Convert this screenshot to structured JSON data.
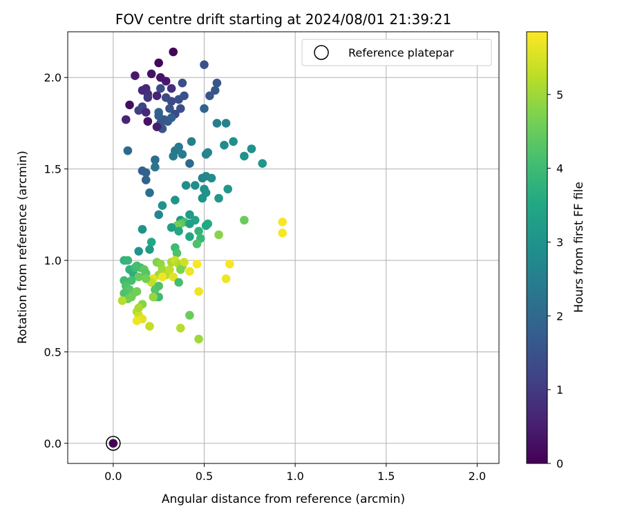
{
  "chart_data": {
    "type": "scatter",
    "title": "FOV centre drift starting at 2024/08/01 21:39:21",
    "xlabel": "Angular distance from reference (arcmin)",
    "ylabel": "Rotation from reference (arcmin)",
    "xlim": [
      -0.25,
      2.12
    ],
    "ylim": [
      -0.11,
      2.25
    ],
    "xticks": [
      0.0,
      0.5,
      1.0,
      1.5,
      2.0
    ],
    "xtick_labels": [
      "0.0",
      "0.5",
      "1.0",
      "1.5",
      "2.0"
    ],
    "yticks": [
      0.0,
      0.5,
      1.0,
      1.5,
      2.0
    ],
    "ytick_labels": [
      "0.0",
      "0.5",
      "1.0",
      "1.5",
      "2.0"
    ],
    "grid": true,
    "legend": {
      "position": "top-right",
      "entries": [
        "Reference platepar"
      ]
    },
    "colorbar": {
      "label": "Hours from first FF file",
      "min": 0,
      "max": 5.85,
      "colormap": "viridis",
      "ticks": [
        0,
        1,
        2,
        3,
        4,
        5
      ],
      "tick_labels": [
        "0",
        "1",
        "2",
        "3",
        "4",
        "5"
      ]
    },
    "reference_point": {
      "x": 0.0,
      "y": 0.0
    },
    "points": [
      [
        0.33,
        2.14,
        0.05
      ],
      [
        0.25,
        2.08,
        0.05
      ],
      [
        0.12,
        2.01,
        0.4
      ],
      [
        0.21,
        2.02,
        0.3
      ],
      [
        0.26,
        2.0,
        0.35
      ],
      [
        0.29,
        1.98,
        0.4
      ],
      [
        0.5,
        2.07,
        1.5
      ],
      [
        0.57,
        1.97,
        1.6
      ],
      [
        0.56,
        1.93,
        1.6
      ],
      [
        0.53,
        1.9,
        1.6
      ],
      [
        0.38,
        1.97,
        1.4
      ],
      [
        0.32,
        1.94,
        0.8
      ],
      [
        0.26,
        1.94,
        1.4
      ],
      [
        0.18,
        1.94,
        0.7
      ],
      [
        0.16,
        1.93,
        0.7
      ],
      [
        0.19,
        1.91,
        0.8
      ],
      [
        0.24,
        1.9,
        0.6
      ],
      [
        0.19,
        1.89,
        0.9
      ],
      [
        0.09,
        1.85,
        0.2
      ],
      [
        0.14,
        1.82,
        1.1
      ],
      [
        0.16,
        1.84,
        1.2
      ],
      [
        0.18,
        1.81,
        0.7
      ],
      [
        0.29,
        1.89,
        1.3
      ],
      [
        0.32,
        1.87,
        1.3
      ],
      [
        0.36,
        1.88,
        1.4
      ],
      [
        0.39,
        1.9,
        1.5
      ],
      [
        0.37,
        1.83,
        1.4
      ],
      [
        0.34,
        1.8,
        1.3
      ],
      [
        0.31,
        1.83,
        1.5
      ],
      [
        0.25,
        1.81,
        1.9
      ],
      [
        0.25,
        1.79,
        1.8
      ],
      [
        0.28,
        1.77,
        1.7
      ],
      [
        0.3,
        1.76,
        1.7
      ],
      [
        0.32,
        1.78,
        1.8
      ],
      [
        0.26,
        1.75,
        1.6
      ],
      [
        0.27,
        1.72,
        1.6
      ],
      [
        0.24,
        1.73,
        0.5
      ],
      [
        0.19,
        1.76,
        0.3
      ],
      [
        0.07,
        1.77,
        0.6
      ],
      [
        0.5,
        1.83,
        1.9
      ],
      [
        0.57,
        1.75,
        2.5
      ],
      [
        0.62,
        1.75,
        2.6
      ],
      [
        0.08,
        1.6,
        2.0
      ],
      [
        0.23,
        1.55,
        2.1
      ],
      [
        0.34,
        1.6,
        2.3
      ],
      [
        0.36,
        1.62,
        2.4
      ],
      [
        0.33,
        1.57,
        2.4
      ],
      [
        0.38,
        1.58,
        2.4
      ],
      [
        0.43,
        1.65,
        2.5
      ],
      [
        0.51,
        1.58,
        2.6
      ],
      [
        0.52,
        1.59,
        2.7
      ],
      [
        0.61,
        1.63,
        2.8
      ],
      [
        0.66,
        1.65,
        2.9
      ],
      [
        0.72,
        1.57,
        3.0
      ],
      [
        0.76,
        1.61,
        3.0
      ],
      [
        0.82,
        1.53,
        3.1
      ],
      [
        0.16,
        1.49,
        1.8
      ],
      [
        0.18,
        1.48,
        1.9
      ],
      [
        0.23,
        1.51,
        2.3
      ],
      [
        0.18,
        1.44,
        1.9
      ],
      [
        0.42,
        1.53,
        2.0
      ],
      [
        0.49,
        1.45,
        2.6
      ],
      [
        0.51,
        1.46,
        2.7
      ],
      [
        0.54,
        1.45,
        2.8
      ],
      [
        0.45,
        1.41,
        2.9
      ],
      [
        0.4,
        1.41,
        2.9
      ],
      [
        0.5,
        1.39,
        2.9
      ],
      [
        0.51,
        1.37,
        3.0
      ],
      [
        0.49,
        1.34,
        3.0
      ],
      [
        0.58,
        1.34,
        3.1
      ],
      [
        0.63,
        1.39,
        3.1
      ],
      [
        0.2,
        1.37,
        2.1
      ],
      [
        0.34,
        1.33,
        3.0
      ],
      [
        0.27,
        1.3,
        3.0
      ],
      [
        0.25,
        1.25,
        2.7
      ],
      [
        0.37,
        1.22,
        3.1
      ],
      [
        0.42,
        1.25,
        3.2
      ],
      [
        0.45,
        1.22,
        3.4
      ],
      [
        0.52,
        1.2,
        3.6
      ],
      [
        0.51,
        1.19,
        3.5
      ],
      [
        0.39,
        1.21,
        4.1
      ],
      [
        0.37,
        1.2,
        4.4
      ],
      [
        0.35,
        1.19,
        4.6
      ],
      [
        0.32,
        1.18,
        3.3
      ],
      [
        0.42,
        1.2,
        3.3
      ],
      [
        0.36,
        1.16,
        3.5
      ],
      [
        0.42,
        1.13,
        3.5
      ],
      [
        0.47,
        1.16,
        3.8
      ],
      [
        0.48,
        1.12,
        3.9
      ],
      [
        0.46,
        1.09,
        4.2
      ],
      [
        0.16,
        1.17,
        3.0
      ],
      [
        0.21,
        1.1,
        3.5
      ],
      [
        0.2,
        1.06,
        3.2
      ],
      [
        0.14,
        1.05,
        3.0
      ],
      [
        0.34,
        1.07,
        4.0
      ],
      [
        0.35,
        1.04,
        4.2
      ],
      [
        0.58,
        1.14,
        4.8
      ],
      [
        0.72,
        1.22,
        4.5
      ],
      [
        0.93,
        1.21,
        5.8
      ],
      [
        0.93,
        1.15,
        5.8
      ],
      [
        0.64,
        0.98,
        5.8
      ],
      [
        0.62,
        0.9,
        5.7
      ],
      [
        0.06,
        1.0,
        3.8
      ],
      [
        0.08,
        1.0,
        3.9
      ],
      [
        0.09,
        0.95,
        3.8
      ],
      [
        0.11,
        0.93,
        3.7
      ],
      [
        0.12,
        0.96,
        4.0
      ],
      [
        0.13,
        0.97,
        4.1
      ],
      [
        0.15,
        0.96,
        4.1
      ],
      [
        0.17,
        0.95,
        4.4
      ],
      [
        0.18,
        0.93,
        4.3
      ],
      [
        0.14,
        0.91,
        4.5
      ],
      [
        0.1,
        0.89,
        4.1
      ],
      [
        0.06,
        0.89,
        4.0
      ],
      [
        0.07,
        0.86,
        4.2
      ],
      [
        0.09,
        0.84,
        4.3
      ],
      [
        0.11,
        0.82,
        4.4
      ],
      [
        0.13,
        0.83,
        4.6
      ],
      [
        0.06,
        0.82,
        4.2
      ],
      [
        0.08,
        0.79,
        4.5
      ],
      [
        0.1,
        0.8,
        4.6
      ],
      [
        0.05,
        0.78,
        5.2
      ],
      [
        0.16,
        0.76,
        4.8
      ],
      [
        0.13,
        0.72,
        5.2
      ],
      [
        0.14,
        0.7,
        5.4
      ],
      [
        0.16,
        0.68,
        5.6
      ],
      [
        0.13,
        0.67,
        5.7
      ],
      [
        0.14,
        0.74,
        5.1
      ],
      [
        0.2,
        0.64,
        5.3
      ],
      [
        0.24,
        0.99,
        4.7
      ],
      [
        0.26,
        0.98,
        4.9
      ],
      [
        0.27,
        0.95,
        5.0
      ],
      [
        0.25,
        0.92,
        5.0
      ],
      [
        0.29,
        0.92,
        5.2
      ],
      [
        0.31,
        0.95,
        5.3
      ],
      [
        0.32,
        0.99,
        5.1
      ],
      [
        0.34,
        1.0,
        5.4
      ],
      [
        0.36,
        0.98,
        5.2
      ],
      [
        0.38,
        0.97,
        4.9
      ],
      [
        0.39,
        0.99,
        5.4
      ],
      [
        0.37,
        0.95,
        4.7
      ],
      [
        0.33,
        0.91,
        5.6
      ],
      [
        0.27,
        0.91,
        5.7
      ],
      [
        0.22,
        0.9,
        5.6
      ],
      [
        0.21,
        0.88,
        5.3
      ],
      [
        0.23,
        0.84,
        4.3
      ],
      [
        0.25,
        0.86,
        4.2
      ],
      [
        0.23,
        0.8,
        4.3
      ],
      [
        0.25,
        0.8,
        4.0
      ],
      [
        0.22,
        0.8,
        4.9
      ],
      [
        0.36,
        0.88,
        4.1
      ],
      [
        0.42,
        0.94,
        5.7
      ],
      [
        0.46,
        0.98,
        5.8
      ],
      [
        0.47,
        0.83,
        5.7
      ],
      [
        0.42,
        0.7,
        4.5
      ],
      [
        0.37,
        0.63,
        5.2
      ],
      [
        0.47,
        0.57,
        5.0
      ],
      [
        0.18,
        0.9,
        4.6
      ]
    ]
  }
}
